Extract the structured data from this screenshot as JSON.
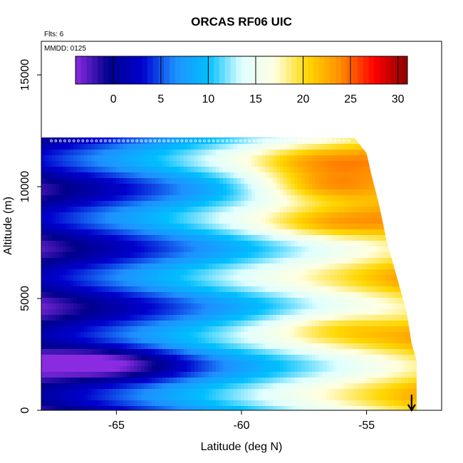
{
  "chart_data": {
    "type": "heatmap",
    "title": "ORCAS RF06 UIC",
    "annotations": {
      "flights": "Flts: 6",
      "date": "MMDD: 0125"
    },
    "xlabel": "Latitude (deg N)",
    "ylabel": "Altitude (m)",
    "xlim": [
      -68,
      -52
    ],
    "ylim": [
      0,
      16500
    ],
    "xticks": [
      -65,
      -60,
      -55
    ],
    "xtick_labels": [
      "-65",
      "-60",
      "-55"
    ],
    "yticks": [
      0,
      5000,
      10000,
      15000
    ],
    "ytick_labels": [
      "0",
      "5000",
      "10000",
      "15000"
    ],
    "colorbar": {
      "range": [
        -4,
        31
      ],
      "ticks": [
        0,
        5,
        10,
        15,
        20,
        25,
        30
      ],
      "tick_labels": [
        "0",
        "5",
        "10",
        "15",
        "20",
        "25",
        "30"
      ],
      "colors": [
        "#8a2be2",
        "#00008b",
        "#0000cd",
        "#1e90ff",
        "#00bfff",
        "#e0ffff",
        "#ffffe0",
        "#ffd700",
        "#ff8c00",
        "#ff0000",
        "#8b0000"
      ]
    },
    "data_extent": {
      "lat_start": -68,
      "top_altitude": [
        [
          -68,
          12200
        ],
        [
          -55.5,
          12200
        ],
        [
          -55,
          11500
        ],
        [
          -54.8,
          10500
        ],
        [
          -54.5,
          9200
        ],
        [
          -54.2,
          7600
        ],
        [
          -53.8,
          6000
        ],
        [
          -53.4,
          4400
        ],
        [
          -53.2,
          3000
        ],
        [
          -53,
          2200
        ],
        [
          -53,
          0
        ]
      ]
    },
    "field_features": [
      {
        "lat": -56,
        "alt": 10000,
        "value": 28
      },
      {
        "lat": -56,
        "alt": 11100,
        "value": 22
      },
      {
        "lat": -55.5,
        "alt": 8300,
        "value": 22
      },
      {
        "lat": -55,
        "alt": 3800,
        "value": 20
      },
      {
        "lat": -66,
        "alt": 2000,
        "value": -1
      },
      {
        "lat": -67.5,
        "alt": 2200,
        "value": -3
      }
    ],
    "arrow": {
      "lat": -53.2,
      "direction": "down"
    }
  }
}
